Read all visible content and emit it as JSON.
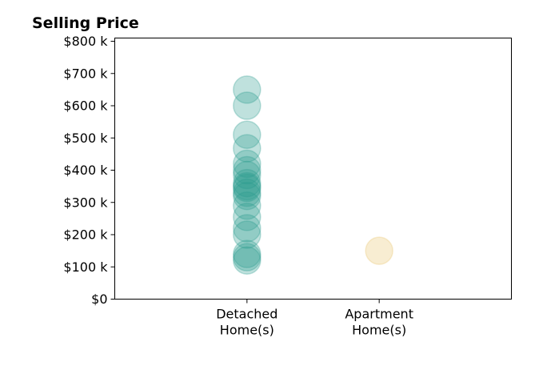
{
  "chart_data": {
    "type": "scatter",
    "title": "Selling Price",
    "xlabel": "",
    "ylabel": "",
    "categories": [
      "Detached\nHome(s)",
      "Apartment\nHome(s)"
    ],
    "xlim": [
      -1,
      2
    ],
    "ylim": [
      0,
      810000
    ],
    "yticks": [
      0,
      100000,
      200000,
      300000,
      400000,
      500000,
      600000,
      700000,
      800000
    ],
    "ytick_labels": [
      "$0",
      "$100 k",
      "$200 k",
      "$300 k",
      "$400 k",
      "$500 k",
      "$600 k",
      "$700 k",
      "$800 k"
    ],
    "grid": false,
    "legend": "none",
    "series": [
      {
        "category_index": 0,
        "color": "#2a9d8f",
        "opacity": 0.3,
        "values": [
          650000,
          600000,
          510000,
          468000,
          420000,
          400000,
          385000,
          360000,
          350000,
          345000,
          330000,
          320000,
          290000,
          255000,
          220000,
          200000,
          140000,
          130000,
          120000
        ]
      },
      {
        "category_index": 1,
        "color": "#e9c46a",
        "opacity": 0.3,
        "values": [
          150000
        ]
      }
    ]
  }
}
